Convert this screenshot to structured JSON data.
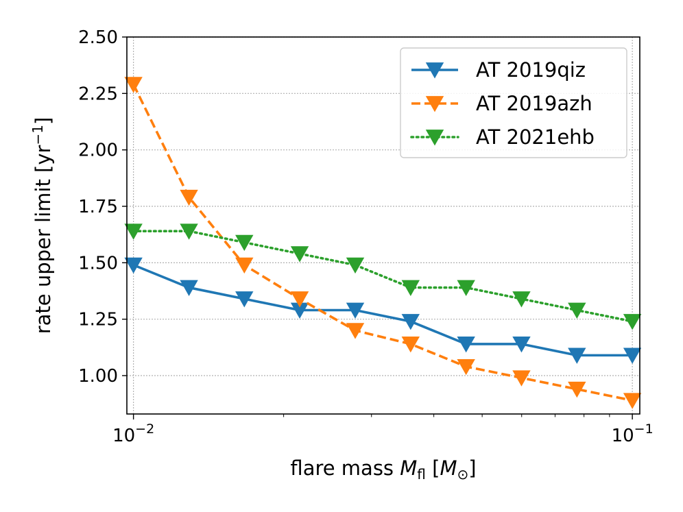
{
  "chart_data": {
    "type": "line",
    "xscale": "log",
    "xlim": [
      0.0097,
      0.1035
    ],
    "ylim": [
      0.83,
      2.5
    ],
    "yticks": [
      1.0,
      1.25,
      1.5,
      1.75,
      2.0,
      2.25,
      2.5
    ],
    "ytick_labels": [
      "1.00",
      "1.25",
      "1.50",
      "1.75",
      "2.00",
      "2.25",
      "2.50"
    ],
    "xtick_labels": [
      {
        "base": "10",
        "exp": "−2",
        "value": 0.01
      },
      {
        "base": "10",
        "exp": "−1",
        "value": 0.1
      }
    ],
    "xlabel": {
      "text": "flare mass ",
      "var": "M",
      "sub": "fl",
      "open": " [",
      "unit_var": "M",
      "unit_sub": "⊙",
      "close": "]"
    },
    "ylabel": {
      "text": "rate upper limit [yr",
      "sup": "−1",
      "close": "]"
    },
    "grid": true,
    "legend_position": "top-right",
    "x": [
      0.01,
      0.01292,
      0.01668,
      0.02154,
      0.02783,
      0.03594,
      0.04642,
      0.05995,
      0.07743,
      0.1
    ],
    "series": [
      {
        "name": "AT 2019qiz",
        "color": "#1f77b4",
        "linestyle": "solid",
        "marker": "triangle-down",
        "values": [
          1.49,
          1.39,
          1.34,
          1.29,
          1.29,
          1.24,
          1.14,
          1.14,
          1.09,
          1.09
        ]
      },
      {
        "name": "AT 2019azh",
        "color": "#ff7f0e",
        "linestyle": "dashed",
        "marker": "triangle-down",
        "values": [
          2.29,
          1.79,
          1.49,
          1.34,
          1.2,
          1.14,
          1.04,
          0.99,
          0.94,
          0.89
        ]
      },
      {
        "name": "AT 2021ehb",
        "color": "#2ca02c",
        "linestyle": "dotted",
        "marker": "triangle-down",
        "values": [
          1.64,
          1.64,
          1.59,
          1.54,
          1.49,
          1.39,
          1.39,
          1.34,
          1.29,
          1.24
        ]
      }
    ]
  }
}
